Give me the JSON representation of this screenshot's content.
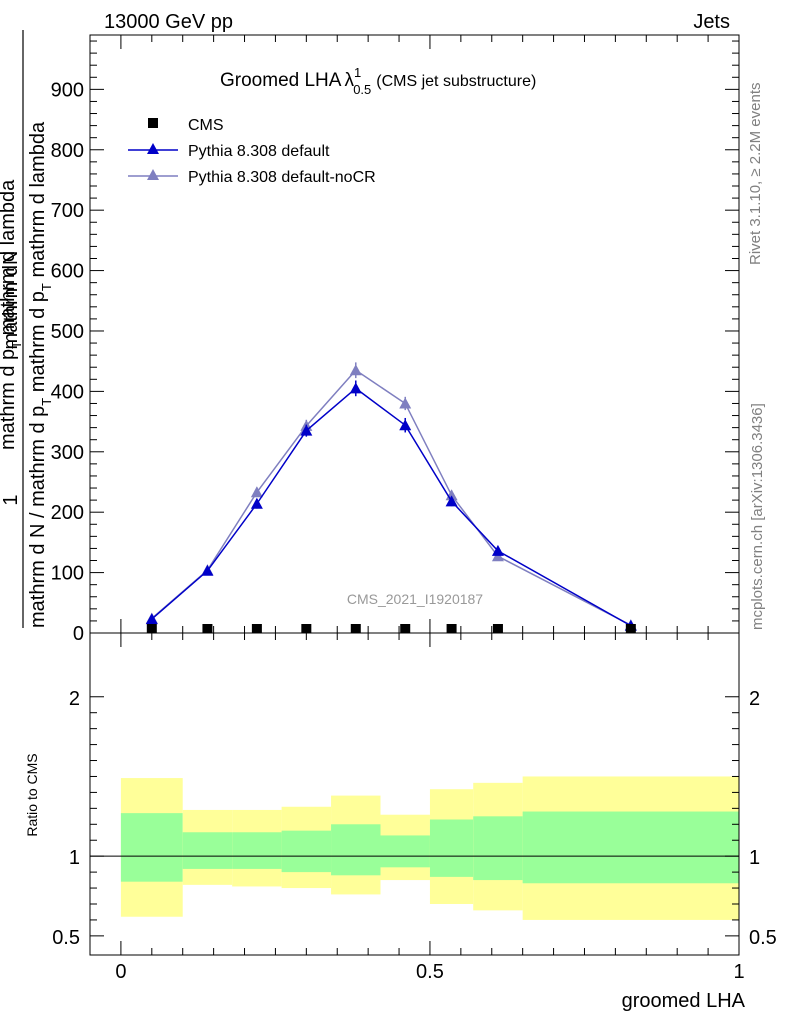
{
  "header": {
    "left": "13000 GeV pp",
    "right": "Jets"
  },
  "side_labels": {
    "rivet": "Rivet 3.1.10, ≥ 2.2M events",
    "mcplots": "mcplots.cern.ch [arXiv:1306.3436]"
  },
  "colors": {
    "cms": "#000000",
    "pythia_default": "#0000c8",
    "pythia_nocr": "#7f7fc0",
    "band_outer": "#ffff99",
    "band_inner": "#99ff99"
  },
  "chart_data": [
    {
      "type": "line",
      "title_main": "Groomed LHA",
      "title_symbol": "λ",
      "title_sup": "1",
      "title_sub": "0.5",
      "title_note": "(CMS jet substructure)",
      "ylabel_num": "1",
      "ylabel_num_line2": "mathrm dN",
      "ylabel_num_line1": "mathrm d p",
      "ylabel_num_line1_sub": "T",
      "ylabel_num_line1_rest": " mathrm d lambda",
      "ylabel_den": "mathrm d N / mathrm d p",
      "ylabel_den_sub": "T",
      "ylabel_den_rest": " mathrm d p",
      "ylabel_den_sub2": "T",
      "ylabel_den_rest2": " mathrm d lambda",
      "watermark": "CMS_2021_I1920187",
      "xlim": [
        -0.05,
        1.0
      ],
      "ylim": [
        0,
        990
      ],
      "yticks": [
        0,
        100,
        200,
        300,
        400,
        500,
        600,
        700,
        800,
        900
      ],
      "legend_placement": "top-left",
      "bin_edges": [
        0.0,
        0.1,
        0.18,
        0.26,
        0.34,
        0.42,
        0.5,
        0.57,
        0.65,
        1.0
      ],
      "x": [
        0.05,
        0.14,
        0.22,
        0.3,
        0.38,
        0.46,
        0.535,
        0.61,
        0.825
      ],
      "series": [
        {
          "name": "CMS",
          "marker": "square",
          "values": [
            0.8,
            0.7,
            2.2,
            3.1,
            2.6,
            2.2,
            1.1,
            0.8,
            0.2
          ]
        },
        {
          "name": "Pythia 8.308 default",
          "marker": "triangle",
          "values": [
            23,
            103,
            214,
            335,
            405,
            344,
            218,
            136,
            12
          ],
          "errors": [
            4,
            5,
            8,
            10,
            13,
            12,
            8,
            7,
            2
          ]
        },
        {
          "name": "Pythia 8.308 default-noCR",
          "marker": "triangle",
          "values": [
            24,
            104,
            233,
            343,
            435,
            380,
            228,
            127,
            13
          ],
          "errors": [
            4,
            5,
            8,
            10,
            13,
            11,
            8,
            6,
            2
          ]
        }
      ]
    },
    {
      "type": "area",
      "ylabel": "Ratio to CMS",
      "xlabel": "groomed LHA",
      "xlim": [
        -0.05,
        1.0
      ],
      "ylim": [
        0.38,
        2.4
      ],
      "xticks": [
        "0",
        "0.5",
        "1"
      ],
      "yticks": [
        "0.5",
        "1",
        "2"
      ],
      "bin_edges": [
        0.0,
        0.1,
        0.18,
        0.26,
        0.34,
        0.42,
        0.5,
        0.57,
        0.65,
        1.0
      ],
      "band_outer_high": [
        1.49,
        1.29,
        1.29,
        1.31,
        1.38,
        1.26,
        1.42,
        1.46,
        1.5
      ],
      "band_outer_low": [
        0.62,
        0.82,
        0.81,
        0.8,
        0.76,
        0.85,
        0.7,
        0.66,
        0.6
      ],
      "band_inner_high": [
        1.27,
        1.15,
        1.15,
        1.16,
        1.2,
        1.13,
        1.23,
        1.25,
        1.28
      ],
      "band_inner_low": [
        0.84,
        0.92,
        0.92,
        0.9,
        0.88,
        0.93,
        0.87,
        0.85,
        0.83
      ]
    }
  ]
}
